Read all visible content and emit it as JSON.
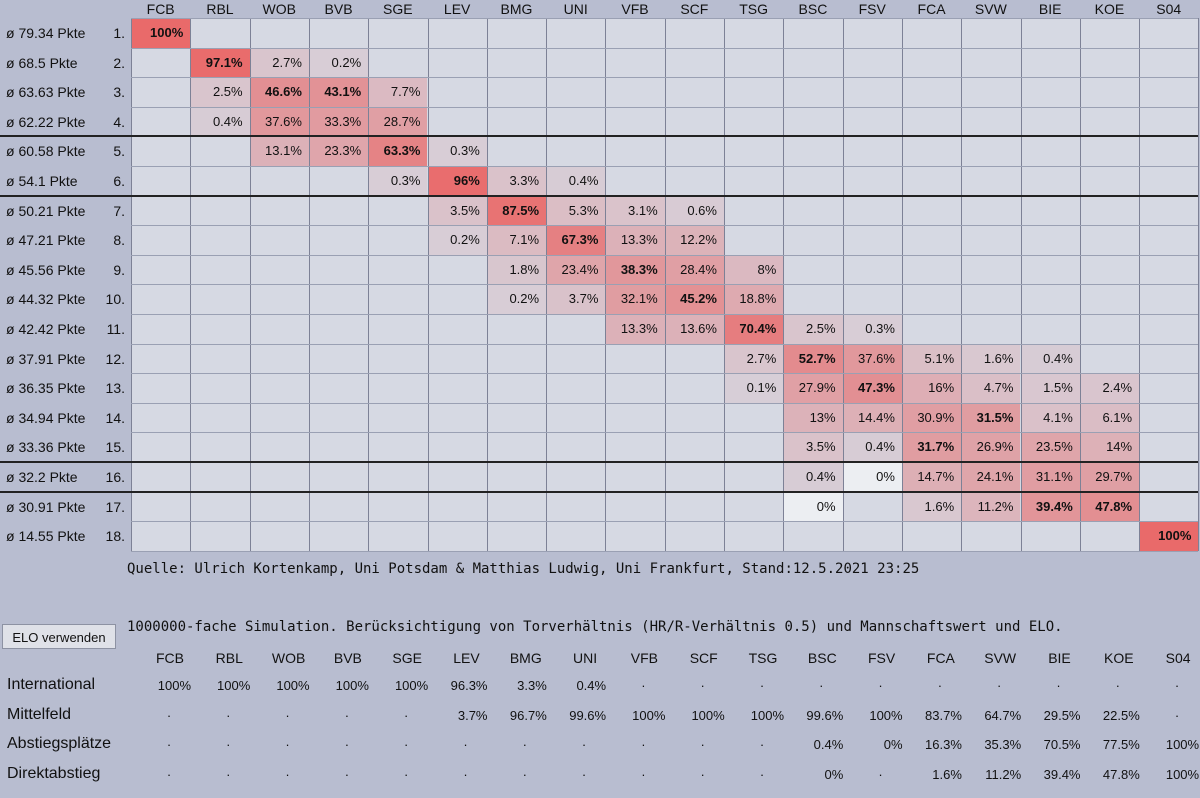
{
  "teams": [
    "FCB",
    "RBL",
    "WOB",
    "BVB",
    "SGE",
    "LEV",
    "BMG",
    "UNI",
    "VFB",
    "SCF",
    "TSG",
    "BSC",
    "FSV",
    "FCA",
    "SVW",
    "BIE",
    "KOE",
    "S04"
  ],
  "rows": [
    {
      "label": "ø 79.34 Pkte",
      "rank": "1.",
      "cells": [
        {
          "col": 0,
          "v": "100%",
          "bold": true,
          "p": 100
        }
      ]
    },
    {
      "label": "ø 68.5 Pkte",
      "rank": "2.",
      "cells": [
        {
          "col": 1,
          "v": "97.1%",
          "bold": true,
          "p": 97.1
        },
        {
          "col": 2,
          "v": "2.7%",
          "p": 2.7
        },
        {
          "col": 3,
          "v": "0.2%",
          "p": 0.2
        }
      ]
    },
    {
      "label": "ø 63.63 Pkte",
      "rank": "3.",
      "cells": [
        {
          "col": 1,
          "v": "2.5%",
          "p": 2.5
        },
        {
          "col": 2,
          "v": "46.6%",
          "bold": true,
          "p": 46.6
        },
        {
          "col": 3,
          "v": "43.1%",
          "bold": true,
          "p": 43.1
        },
        {
          "col": 4,
          "v": "7.7%",
          "p": 7.7
        }
      ]
    },
    {
      "label": "ø 62.22 Pkte",
      "rank": "4.",
      "cells": [
        {
          "col": 1,
          "v": "0.4%",
          "p": 0.4
        },
        {
          "col": 2,
          "v": "37.6%",
          "p": 37.6
        },
        {
          "col": 3,
          "v": "33.3%",
          "p": 33.3
        },
        {
          "col": 4,
          "v": "28.7%",
          "p": 28.7
        }
      ]
    },
    {
      "label": "ø 60.58 Pkte",
      "rank": "5.",
      "cells": [
        {
          "col": 2,
          "v": "13.1%",
          "p": 13.1
        },
        {
          "col": 3,
          "v": "23.3%",
          "p": 23.3
        },
        {
          "col": 4,
          "v": "63.3%",
          "bold": true,
          "p": 63.3
        },
        {
          "col": 5,
          "v": "0.3%",
          "p": 0.3
        }
      ]
    },
    {
      "label": "ø 54.1 Pkte",
      "rank": "6.",
      "cells": [
        {
          "col": 4,
          "v": "0.3%",
          "p": 0.3
        },
        {
          "col": 5,
          "v": "96%",
          "bold": true,
          "p": 96
        },
        {
          "col": 6,
          "v": "3.3%",
          "p": 3.3
        },
        {
          "col": 7,
          "v": "0.4%",
          "p": 0.4
        }
      ]
    },
    {
      "label": "ø 50.21 Pkte",
      "rank": "7.",
      "cells": [
        {
          "col": 5,
          "v": "3.5%",
          "p": 3.5
        },
        {
          "col": 6,
          "v": "87.5%",
          "bold": true,
          "p": 87.5
        },
        {
          "col": 7,
          "v": "5.3%",
          "p": 5.3
        },
        {
          "col": 8,
          "v": "3.1%",
          "p": 3.1
        },
        {
          "col": 9,
          "v": "0.6%",
          "p": 0.6
        }
      ]
    },
    {
      "label": "ø 47.21 Pkte",
      "rank": "8.",
      "cells": [
        {
          "col": 5,
          "v": "0.2%",
          "p": 0.2
        },
        {
          "col": 6,
          "v": "7.1%",
          "p": 7.1
        },
        {
          "col": 7,
          "v": "67.3%",
          "bold": true,
          "p": 67.3
        },
        {
          "col": 8,
          "v": "13.3%",
          "p": 13.3
        },
        {
          "col": 9,
          "v": "12.2%",
          "p": 12.2
        }
      ]
    },
    {
      "label": "ø 45.56 Pkte",
      "rank": "9.",
      "cells": [
        {
          "col": 6,
          "v": "1.8%",
          "p": 1.8
        },
        {
          "col": 7,
          "v": "23.4%",
          "p": 23.4
        },
        {
          "col": 8,
          "v": "38.3%",
          "bold": true,
          "p": 38.3
        },
        {
          "col": 9,
          "v": "28.4%",
          "p": 28.4
        },
        {
          "col": 10,
          "v": "8%",
          "p": 8
        }
      ]
    },
    {
      "label": "ø 44.32 Pkte",
      "rank": "10.",
      "cells": [
        {
          "col": 6,
          "v": "0.2%",
          "p": 0.2
        },
        {
          "col": 7,
          "v": "3.7%",
          "p": 3.7
        },
        {
          "col": 8,
          "v": "32.1%",
          "p": 32.1
        },
        {
          "col": 9,
          "v": "45.2%",
          "bold": true,
          "p": 45.2
        },
        {
          "col": 10,
          "v": "18.8%",
          "p": 18.8
        }
      ]
    },
    {
      "label": "ø 42.42 Pkte",
      "rank": "11.",
      "cells": [
        {
          "col": 8,
          "v": "13.3%",
          "p": 13.3
        },
        {
          "col": 9,
          "v": "13.6%",
          "p": 13.6
        },
        {
          "col": 10,
          "v": "70.4%",
          "bold": true,
          "p": 70.4
        },
        {
          "col": 11,
          "v": "2.5%",
          "p": 2.5
        },
        {
          "col": 12,
          "v": "0.3%",
          "p": 0.3
        }
      ]
    },
    {
      "label": "ø 37.91 Pkte",
      "rank": "12.",
      "cells": [
        {
          "col": 10,
          "v": "2.7%",
          "p": 2.7
        },
        {
          "col": 11,
          "v": "52.7%",
          "bold": true,
          "p": 52.7
        },
        {
          "col": 12,
          "v": "37.6%",
          "p": 37.6
        },
        {
          "col": 13,
          "v": "5.1%",
          "p": 5.1
        },
        {
          "col": 14,
          "v": "1.6%",
          "p": 1.6
        },
        {
          "col": 15,
          "v": "0.4%",
          "p": 0.4
        }
      ]
    },
    {
      "label": "ø 36.35 Pkte",
      "rank": "13.",
      "cells": [
        {
          "col": 10,
          "v": "0.1%",
          "p": 0.1
        },
        {
          "col": 11,
          "v": "27.9%",
          "p": 27.9
        },
        {
          "col": 12,
          "v": "47.3%",
          "bold": true,
          "p": 47.3
        },
        {
          "col": 13,
          "v": "16%",
          "p": 16
        },
        {
          "col": 14,
          "v": "4.7%",
          "p": 4.7
        },
        {
          "col": 15,
          "v": "1.5%",
          "p": 1.5
        },
        {
          "col": 16,
          "v": "2.4%",
          "p": 2.4
        }
      ]
    },
    {
      "label": "ø 34.94 Pkte",
      "rank": "14.",
      "cells": [
        {
          "col": 11,
          "v": "13%",
          "p": 13
        },
        {
          "col": 12,
          "v": "14.4%",
          "p": 14.4
        },
        {
          "col": 13,
          "v": "30.9%",
          "p": 30.9
        },
        {
          "col": 14,
          "v": "31.5%",
          "bold": true,
          "p": 31.5
        },
        {
          "col": 15,
          "v": "4.1%",
          "p": 4.1
        },
        {
          "col": 16,
          "v": "6.1%",
          "p": 6.1
        }
      ]
    },
    {
      "label": "ø 33.36 Pkte",
      "rank": "15.",
      "cells": [
        {
          "col": 11,
          "v": "3.5%",
          "p": 3.5
        },
        {
          "col": 12,
          "v": "0.4%",
          "p": 0.4
        },
        {
          "col": 13,
          "v": "31.7%",
          "bold": true,
          "p": 31.7
        },
        {
          "col": 14,
          "v": "26.9%",
          "p": 26.9
        },
        {
          "col": 15,
          "v": "23.5%",
          "p": 23.5
        },
        {
          "col": 16,
          "v": "14%",
          "p": 14
        }
      ]
    },
    {
      "label": "ø 32.2 Pkte",
      "rank": "16.",
      "cells": [
        {
          "col": 11,
          "v": "0.4%",
          "p": 0.4
        },
        {
          "col": 12,
          "v": "0%",
          "p": 0
        },
        {
          "col": 13,
          "v": "14.7%",
          "p": 14.7
        },
        {
          "col": 14,
          "v": "24.1%",
          "p": 24.1
        },
        {
          "col": 15,
          "v": "31.1%",
          "p": 31.1
        },
        {
          "col": 16,
          "v": "29.7%",
          "p": 29.7
        }
      ]
    },
    {
      "label": "ø 30.91 Pkte",
      "rank": "17.",
      "cells": [
        {
          "col": 11,
          "v": "0%",
          "p": 0
        },
        {
          "col": 13,
          "v": "1.6%",
          "p": 1.6
        },
        {
          "col": 14,
          "v": "11.2%",
          "p": 11.2
        },
        {
          "col": 15,
          "v": "39.4%",
          "bold": true,
          "p": 39.4
        },
        {
          "col": 16,
          "v": "47.8%",
          "bold": true,
          "p": 47.8
        }
      ]
    },
    {
      "label": "ø 14.55 Pkte",
      "rank": "18.",
      "cells": [
        {
          "col": 17,
          "v": "100%",
          "bold": true,
          "p": 100
        }
      ]
    }
  ],
  "separators_after_rank": [
    4,
    6,
    15,
    16
  ],
  "source": "Quelle: Ulrich Kortenkamp, Uni Potsdam & Matthias Ludwig, Uni Frankfurt, Stand:12.5.2021 23:25",
  "elo_button": "ELO verwenden",
  "simulation_text": "1000000-fache Simulation. Berücksichtigung von Torverhältnis (HR/R-Verhältnis 0.5) und Mannschaftswert und ELO.",
  "summary": [
    {
      "label": "International",
      "values": [
        "100%",
        "100%",
        "100%",
        "100%",
        "100%",
        "96.3%",
        "3.3%",
        "0.4%",
        "·",
        "·",
        "·",
        "·",
        "·",
        "·",
        "·",
        "·",
        "·",
        "·"
      ]
    },
    {
      "label": "Mittelfeld",
      "values": [
        "·",
        "·",
        "·",
        "·",
        "·",
        "3.7%",
        "96.7%",
        "99.6%",
        "100%",
        "100%",
        "100%",
        "99.6%",
        "100%",
        "83.7%",
        "64.7%",
        "29.5%",
        "22.5%",
        "·"
      ]
    },
    {
      "label": "Abstiegsplätze",
      "values": [
        "·",
        "·",
        "·",
        "·",
        "·",
        "·",
        "·",
        "·",
        "·",
        "·",
        "·",
        "0.4%",
        "0%",
        "16.3%",
        "35.3%",
        "70.5%",
        "77.5%",
        "100%"
      ]
    },
    {
      "label": "Direktabstieg",
      "values": [
        "·",
        "·",
        "·",
        "·",
        "·",
        "·",
        "·",
        "·",
        "·",
        "·",
        "·",
        "0%",
        "·",
        "1.6%",
        "11.2%",
        "39.4%",
        "47.8%",
        "100%"
      ]
    }
  ],
  "colors": {
    "background": "#b8bdd0",
    "cell_bg": "#d6d9e3",
    "heat": "#e96a6a"
  }
}
